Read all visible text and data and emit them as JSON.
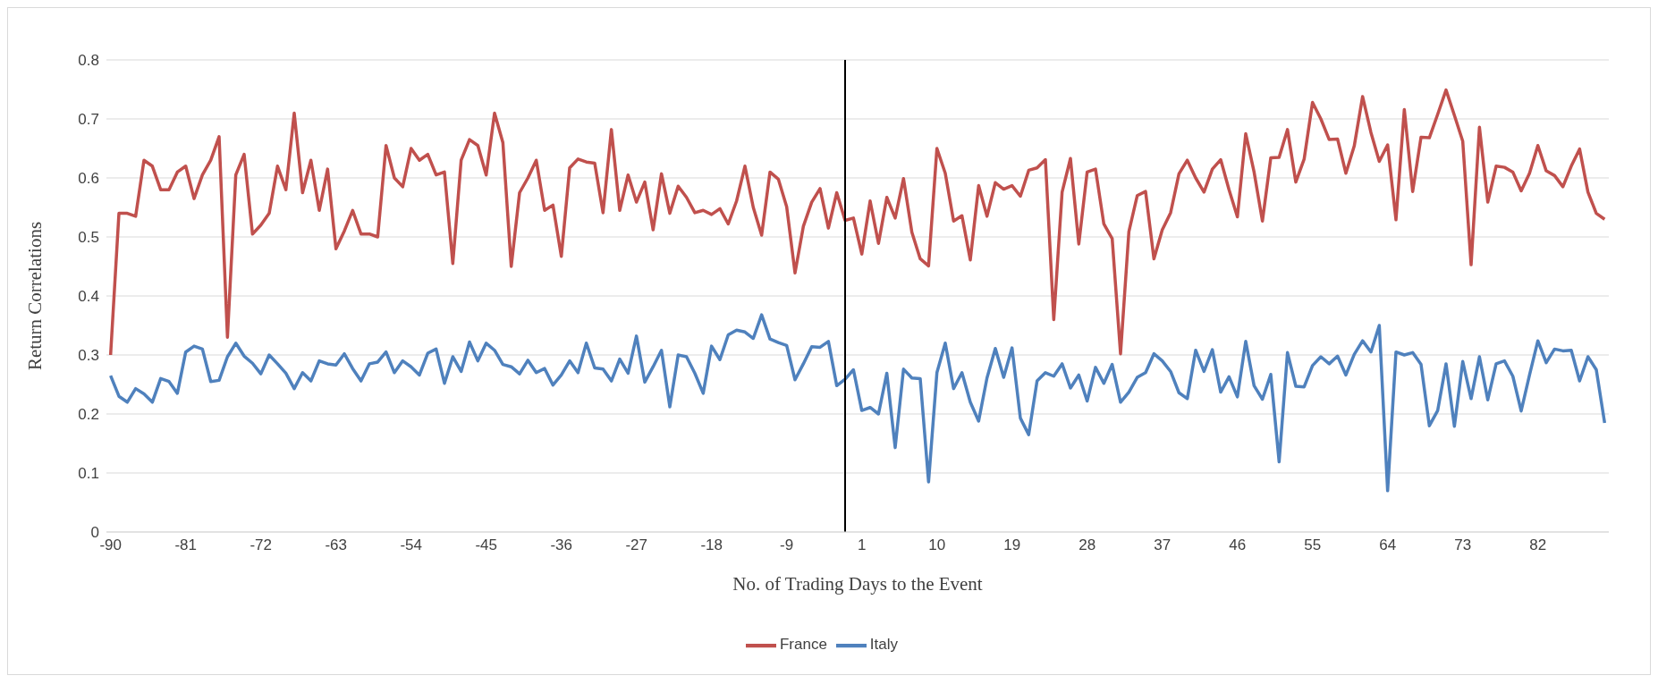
{
  "chart_data": {
    "type": "line",
    "xlabel": "No. of Trading Days to the Event",
    "ylabel": "Return Correlations",
    "categories": [
      "-90",
      null,
      null,
      null,
      null,
      null,
      null,
      null,
      null,
      "-81",
      null,
      null,
      null,
      null,
      null,
      null,
      null,
      null,
      "-72",
      null,
      null,
      null,
      null,
      null,
      null,
      null,
      null,
      "-63",
      null,
      null,
      null,
      null,
      null,
      null,
      null,
      null,
      "-54",
      null,
      null,
      null,
      null,
      null,
      null,
      null,
      null,
      "-45",
      null,
      null,
      null,
      null,
      null,
      null,
      null,
      null,
      "-36",
      null,
      null,
      null,
      null,
      null,
      null,
      null,
      null,
      "-27",
      null,
      null,
      null,
      null,
      null,
      null,
      null,
      null,
      "-18",
      null,
      null,
      null,
      null,
      null,
      null,
      null,
      null,
      "-9",
      null,
      null,
      null,
      null,
      null,
      null,
      null,
      null,
      "1",
      null,
      null,
      null,
      null,
      null,
      null,
      null,
      null,
      "10",
      null,
      null,
      null,
      null,
      null,
      null,
      null,
      null,
      "19",
      null,
      null,
      null,
      null,
      null,
      null,
      null,
      null,
      "28",
      null,
      null,
      null,
      null,
      null,
      null,
      null,
      null,
      "37",
      null,
      null,
      null,
      null,
      null,
      null,
      null,
      null,
      "46",
      null,
      null,
      null,
      null,
      null,
      null,
      null,
      null,
      "55",
      null,
      null,
      null,
      null,
      null,
      null,
      null,
      null,
      "64",
      null,
      null,
      null,
      null,
      null,
      null,
      null,
      null,
      "73",
      null,
      null,
      null,
      null,
      null,
      null,
      null,
      null,
      "82",
      null,
      null,
      null,
      null,
      null,
      null,
      null,
      null
    ],
    "series": [
      {
        "name": "Italy",
        "color": "#4f81bd",
        "values": [
          0.265,
          0.23,
          0.22,
          0.243,
          0.234,
          0.22,
          0.26,
          0.255,
          0.235,
          0.305,
          0.315,
          0.31,
          0.255,
          0.257,
          0.297,
          0.32,
          0.298,
          0.286,
          0.268,
          0.3,
          0.285,
          0.269,
          0.243,
          0.27,
          0.256,
          0.29,
          0.285,
          0.283,
          0.302,
          0.277,
          0.256,
          0.285,
          0.288,
          0.305,
          0.27,
          0.29,
          0.28,
          0.266,
          0.303,
          0.31,
          0.252,
          0.297,
          0.272,
          0.322,
          0.29,
          0.32,
          0.308,
          0.284,
          0.28,
          0.268,
          0.291,
          0.27,
          0.277,
          0.249,
          0.266,
          0.29,
          0.27,
          0.32,
          0.278,
          0.276,
          0.256,
          0.293,
          0.269,
          0.332,
          0.254,
          0.28,
          0.308,
          0.212,
          0.3,
          0.297,
          0.269,
          0.235,
          0.315,
          0.292,
          0.334,
          0.342,
          0.339,
          0.328,
          0.368,
          0.327,
          0.321,
          0.316,
          0.258,
          0.285,
          0.314,
          0.313,
          0.323,
          0.248,
          0.259,
          0.275,
          0.206,
          0.211,
          0.2,
          0.269,
          0.143,
          0.276,
          0.261,
          0.26,
          0.085,
          0.27,
          0.32,
          0.243,
          0.27,
          0.22,
          0.188,
          0.261,
          0.311,
          0.262,
          0.312,
          0.193,
          0.165,
          0.256,
          0.27,
          0.264,
          0.285,
          0.244,
          0.266,
          0.222,
          0.279,
          0.252,
          0.284,
          0.22,
          0.237,
          0.262,
          0.27,
          0.302,
          0.29,
          0.272,
          0.236,
          0.226,
          0.308,
          0.272,
          0.309,
          0.237,
          0.263,
          0.229,
          0.323,
          0.248,
          0.225,
          0.267,
          0.119,
          0.304,
          0.247,
          0.246,
          0.282,
          0.297,
          0.285,
          0.298,
          0.266,
          0.301,
          0.324,
          0.305,
          0.35,
          0.07,
          0.305,
          0.3,
          0.304,
          0.284,
          0.18,
          0.206,
          0.285,
          0.179,
          0.289,
          0.226,
          0.297,
          0.224,
          0.285,
          0.29,
          0.264,
          0.205,
          0.266,
          0.324,
          0.287,
          0.31,
          0.307,
          0.308,
          0.256,
          0.297,
          0.275,
          0.185
        ]
      },
      {
        "name": "France",
        "color": "#c0504d",
        "values": [
          0.3,
          0.54,
          0.54,
          0.535,
          0.63,
          0.62,
          0.58,
          0.58,
          0.61,
          0.62,
          0.565,
          0.605,
          0.63,
          0.67,
          0.33,
          0.605,
          0.64,
          0.505,
          0.52,
          0.54,
          0.62,
          0.58,
          0.71,
          0.575,
          0.63,
          0.545,
          0.615,
          0.48,
          0.51,
          0.545,
          0.505,
          0.505,
          0.5,
          0.655,
          0.6,
          0.585,
          0.65,
          0.63,
          0.64,
          0.605,
          0.61,
          0.455,
          0.63,
          0.665,
          0.655,
          0.605,
          0.71,
          0.66,
          0.45,
          0.575,
          0.6,
          0.63,
          0.545,
          0.554,
          0.467,
          0.617,
          0.632,
          0.627,
          0.625,
          0.541,
          0.682,
          0.545,
          0.605,
          0.559,
          0.593,
          0.512,
          0.607,
          0.54,
          0.586,
          0.567,
          0.541,
          0.545,
          0.538,
          0.548,
          0.522,
          0.561,
          0.62,
          0.55,
          0.503,
          0.61,
          0.598,
          0.551,
          0.439,
          0.518,
          0.559,
          0.582,
          0.515,
          0.575,
          0.528,
          0.532,
          0.471,
          0.561,
          0.489,
          0.567,
          0.532,
          0.599,
          0.508,
          0.463,
          0.451,
          0.65,
          0.608,
          0.527,
          0.536,
          0.461,
          0.587,
          0.535,
          0.592,
          0.581,
          0.587,
          0.569,
          0.613,
          0.617,
          0.631,
          0.36,
          0.576,
          0.633,
          0.488,
          0.61,
          0.615,
          0.522,
          0.497,
          0.302,
          0.509,
          0.57,
          0.577,
          0.463,
          0.512,
          0.541,
          0.607,
          0.63,
          0.6,
          0.576,
          0.615,
          0.631,
          0.58,
          0.534,
          0.675,
          0.61,
          0.527,
          0.634,
          0.635,
          0.682,
          0.593,
          0.632,
          0.728,
          0.7,
          0.665,
          0.666,
          0.608,
          0.654,
          0.738,
          0.677,
          0.628,
          0.656,
          0.529,
          0.716,
          0.577,
          0.669,
          0.668,
          0.708,
          0.749,
          0.706,
          0.662,
          0.453,
          0.686,
          0.559,
          0.62,
          0.618,
          0.61,
          0.578,
          0.608,
          0.655,
          0.612,
          0.604,
          0.585,
          0.62,
          0.649,
          0.576,
          0.54,
          0.53
        ]
      }
    ],
    "ylim": [
      0,
      0.8
    ],
    "yticks": [
      0,
      0.1,
      0.2,
      0.3,
      0.4,
      0.5,
      0.6,
      0.7,
      0.8
    ],
    "grid": "y",
    "legend": "bottom"
  }
}
